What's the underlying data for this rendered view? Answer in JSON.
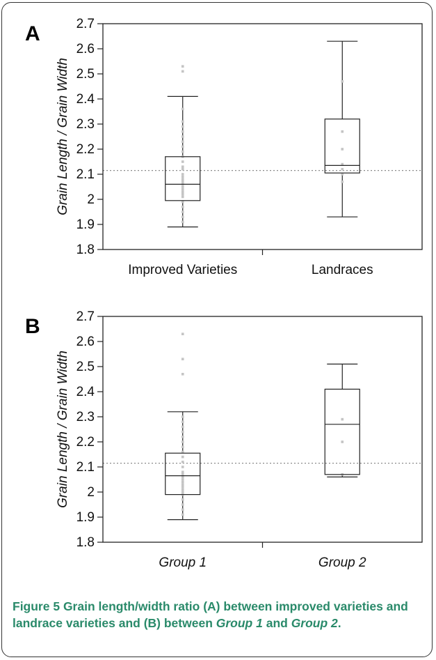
{
  "chart_data": [
    {
      "type": "box",
      "panel_label": "A",
      "ylabel": "Grain Length / Grain Width",
      "ylim": [
        1.8,
        2.7
      ],
      "yticks": [
        "1.8",
        "1.9",
        "2",
        "2.1",
        "2.2",
        "2.3",
        "2.4",
        "2.5",
        "2.6",
        "2.7"
      ],
      "categories": [
        "Improved Varieties",
        "Landraces"
      ],
      "category_style": "normal",
      "reference_line": 2.115,
      "boxes": [
        {
          "category": "Improved Varieties",
          "whisker_low": 1.89,
          "q1": 1.995,
          "median": 2.06,
          "q3": 2.17,
          "whisker_high": 2.41,
          "points": [
            2.53,
            2.51,
            2.36,
            2.31,
            2.29,
            2.27,
            2.25,
            2.23,
            2.21,
            2.19,
            2.17,
            2.15,
            2.13,
            2.12,
            2.1,
            2.09,
            2.08,
            2.07,
            2.06,
            2.05,
            2.04,
            2.03,
            2.02,
            2.01,
            1.99,
            1.97,
            1.95,
            1.93,
            1.91
          ]
        },
        {
          "category": "Landraces",
          "whisker_low": 1.93,
          "q1": 2.105,
          "median": 2.135,
          "q3": 2.32,
          "whisker_high": 2.63,
          "points": [
            2.47,
            2.27,
            2.2,
            2.14,
            2.12,
            2.1,
            2.07
          ]
        }
      ]
    },
    {
      "type": "box",
      "panel_label": "B",
      "ylabel": "Grain Length / Grain Width",
      "ylim": [
        1.8,
        2.7
      ],
      "yticks": [
        "1.8",
        "1.9",
        "2",
        "2.1",
        "2.2",
        "2.3",
        "2.4",
        "2.5",
        "2.6",
        "2.7"
      ],
      "categories": [
        "Group 1",
        "Group 2"
      ],
      "category_style": "italic",
      "reference_line": 2.115,
      "boxes": [
        {
          "category": "Group 1",
          "whisker_low": 1.89,
          "q1": 1.99,
          "median": 2.065,
          "q3": 2.155,
          "whisker_high": 2.32,
          "points": [
            2.63,
            2.53,
            2.47,
            2.3,
            2.28,
            2.26,
            2.24,
            2.22,
            2.2,
            2.18,
            2.16,
            2.14,
            2.12,
            2.1,
            2.08,
            2.07,
            2.06,
            2.05,
            2.04,
            2.03,
            2.02,
            2.01,
            2.0,
            1.99,
            1.97,
            1.95,
            1.93,
            1.91
          ]
        },
        {
          "category": "Group 2",
          "whisker_low": 2.06,
          "q1": 2.07,
          "median": 2.27,
          "q3": 2.41,
          "whisker_high": 2.51,
          "points": [
            2.29,
            2.2,
            2.07
          ]
        }
      ]
    }
  ],
  "caption": {
    "label": "Figure 5",
    "part1": " Grain length/width ratio (A) between improved varieties and landrace varieties and (B) between ",
    "italic1": "Group 1",
    "part2": " and ",
    "italic2": "Group 2",
    "part3": "."
  },
  "colors": {
    "caption": "#2a8a6a",
    "points": "#c4c4c4",
    "reference_line": "#8a8a8a"
  }
}
